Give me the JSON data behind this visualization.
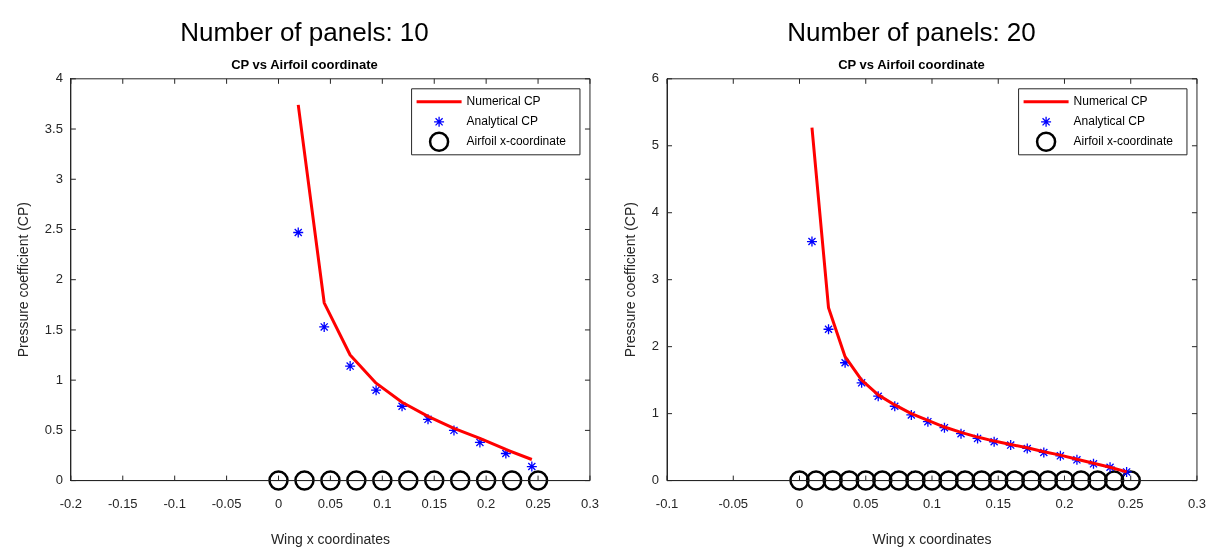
{
  "chart_data": [
    {
      "type": "line",
      "title": "Number of panels: 10",
      "subtitle": "CP vs Airfoil coordinate",
      "xlabel": "Wing x coordinates",
      "ylabel": "Pressure coefficient (CP)",
      "xlim": [
        -0.2,
        0.3
      ],
      "xticks": [
        -0.2,
        -0.15,
        -0.1,
        -0.05,
        0,
        0.05,
        0.1,
        0.15,
        0.2,
        0.25,
        0.3
      ],
      "ylim": [
        0,
        4
      ],
      "yticks": [
        0,
        0.5,
        1,
        1.5,
        2,
        2.5,
        3,
        3.5,
        4
      ],
      "grid": false,
      "legend": "top right",
      "series": [
        {
          "name": "Numerical CP",
          "type": "line",
          "color": "#ff0000",
          "marker": "none",
          "x": [
            0.019,
            0.044,
            0.069,
            0.094,
            0.119,
            0.144,
            0.169,
            0.194,
            0.219,
            0.244
          ],
          "values": [
            3.74,
            1.77,
            1.25,
            0.97,
            0.78,
            0.64,
            0.52,
            0.42,
            0.31,
            0.21
          ]
        },
        {
          "name": "Analytical CP",
          "type": "scatter",
          "color": "#0000ff",
          "marker": "cross",
          "x": [
            0.019,
            0.044,
            0.069,
            0.094,
            0.119,
            0.144,
            0.169,
            0.194,
            0.219,
            0.244
          ],
          "values": [
            2.47,
            1.53,
            1.14,
            0.9,
            0.74,
            0.61,
            0.5,
            0.38,
            0.27,
            0.14
          ]
        },
        {
          "name": "Airfoil x-coordinate",
          "type": "scatter",
          "color": "#000000",
          "marker": "circle",
          "x": [
            0,
            0.025,
            0.05,
            0.075,
            0.1,
            0.125,
            0.15,
            0.175,
            0.2,
            0.225,
            0.25
          ],
          "values": [
            0,
            0,
            0,
            0,
            0,
            0,
            0,
            0,
            0,
            0,
            0
          ]
        }
      ]
    },
    {
      "type": "line",
      "title": "Number of panels: 20",
      "subtitle": "CP vs Airfoil coordinate",
      "xlabel": "Wing x coordinates",
      "ylabel": "Pressure coefficient (CP)",
      "xlim": [
        -0.1,
        0.3
      ],
      "xticks": [
        -0.1,
        -0.05,
        0,
        0.05,
        0.1,
        0.15,
        0.2,
        0.25,
        0.3
      ],
      "ylim": [
        0,
        6
      ],
      "yticks": [
        0,
        1,
        2,
        3,
        4,
        5,
        6
      ],
      "grid": false,
      "legend": "top right",
      "series": [
        {
          "name": "Numerical CP",
          "type": "line",
          "color": "#ff0000",
          "marker": "none",
          "x": [
            0.0094,
            0.0219,
            0.0344,
            0.0469,
            0.0594,
            0.0719,
            0.0844,
            0.0969,
            0.1094,
            0.1219,
            0.1344,
            0.1469,
            0.1594,
            0.1719,
            0.1844,
            0.1969,
            0.2094,
            0.2219,
            0.2344,
            0.2469
          ],
          "values": [
            5.27,
            2.58,
            1.85,
            1.5,
            1.28,
            1.13,
            1.0,
            0.9,
            0.8,
            0.72,
            0.65,
            0.59,
            0.54,
            0.49,
            0.43,
            0.38,
            0.32,
            0.26,
            0.2,
            0.13
          ]
        },
        {
          "name": "Analytical CP",
          "type": "scatter",
          "color": "#0000ff",
          "marker": "cross",
          "x": [
            0.0094,
            0.0219,
            0.0344,
            0.0469,
            0.0594,
            0.0719,
            0.0844,
            0.0969,
            0.1094,
            0.1219,
            0.1344,
            0.1469,
            0.1594,
            0.1719,
            0.1844,
            0.1969,
            0.2094,
            0.2219,
            0.2344,
            0.2469
          ],
          "values": [
            3.57,
            2.26,
            1.76,
            1.46,
            1.26,
            1.11,
            0.98,
            0.88,
            0.79,
            0.7,
            0.63,
            0.58,
            0.53,
            0.48,
            0.42,
            0.37,
            0.31,
            0.25,
            0.2,
            0.13
          ]
        },
        {
          "name": "Airfoil x-coordinate",
          "type": "scatter",
          "color": "#000000",
          "marker": "circle",
          "x": [
            0,
            0.0125,
            0.025,
            0.0375,
            0.05,
            0.0625,
            0.075,
            0.0875,
            0.1,
            0.1125,
            0.125,
            0.1375,
            0.15,
            0.1625,
            0.175,
            0.1875,
            0.2,
            0.2125,
            0.225,
            0.2375,
            0.25
          ],
          "values": [
            0,
            0,
            0,
            0,
            0,
            0,
            0,
            0,
            0,
            0,
            0,
            0,
            0,
            0,
            0,
            0,
            0,
            0,
            0,
            0,
            0
          ]
        }
      ]
    }
  ]
}
